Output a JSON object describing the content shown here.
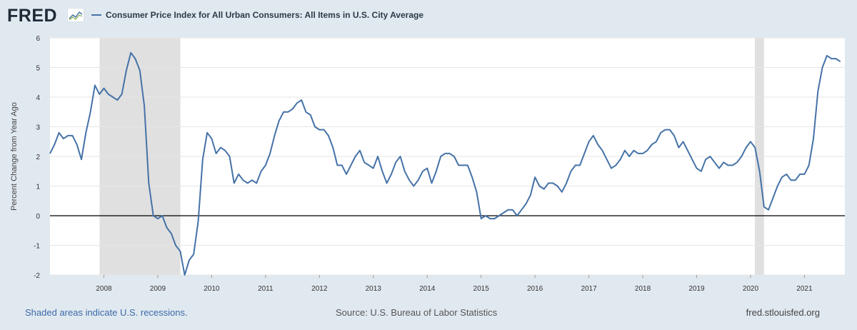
{
  "logo": {
    "text": "FRED",
    "icon": "fred-line-chart-icon"
  },
  "legend": {
    "label": "Consumer Price Index for All Urban Consumers: All Items in U.S. City Average",
    "color": "#4572a7"
  },
  "footer": {
    "recession_note": "Shaded areas indicate U.S. recessions.",
    "source": "Source: U.S. Bureau of Labor Statistics",
    "site": "fred.stlouisfed.org"
  },
  "colors": {
    "background": "#e1e9f0",
    "plot": "#ffffff",
    "grid": "#e6e6e6",
    "recession": "#e0e0e0",
    "series": "#4572a7",
    "zero_line": "#000000"
  },
  "chart_data": {
    "type": "line",
    "title": "Consumer Price Index for All Urban Consumers: All Items in U.S. City Average",
    "xlabel": "",
    "ylabel": "Percent Change from Year Ago",
    "xlim": [
      2007.0,
      2021.75
    ],
    "ylim": [
      -2,
      6
    ],
    "yticks": [
      -2,
      -1,
      0,
      1,
      2,
      3,
      4,
      5,
      6
    ],
    "xticks": [
      2008,
      2009,
      2010,
      2011,
      2012,
      2013,
      2014,
      2015,
      2016,
      2017,
      2018,
      2019,
      2020,
      2021
    ],
    "grid": true,
    "recessions": [
      [
        2007.92,
        2009.42
      ],
      [
        2020.08,
        2020.25
      ]
    ],
    "series": [
      {
        "name": "Consumer Price Index for All Urban Consumers: All Items in U.S. City Average",
        "x": [
          2007.0,
          2007.083,
          2007.167,
          2007.25,
          2007.333,
          2007.417,
          2007.5,
          2007.583,
          2007.667,
          2007.75,
          2007.833,
          2007.917,
          2008.0,
          2008.083,
          2008.167,
          2008.25,
          2008.333,
          2008.417,
          2008.5,
          2008.583,
          2008.667,
          2008.75,
          2008.833,
          2008.917,
          2009.0,
          2009.083,
          2009.167,
          2009.25,
          2009.333,
          2009.417,
          2009.5,
          2009.583,
          2009.667,
          2009.75,
          2009.833,
          2009.917,
          2010.0,
          2010.083,
          2010.167,
          2010.25,
          2010.333,
          2010.417,
          2010.5,
          2010.583,
          2010.667,
          2010.75,
          2010.833,
          2010.917,
          2011.0,
          2011.083,
          2011.167,
          2011.25,
          2011.333,
          2011.417,
          2011.5,
          2011.583,
          2011.667,
          2011.75,
          2011.833,
          2011.917,
          2012.0,
          2012.083,
          2012.167,
          2012.25,
          2012.333,
          2012.417,
          2012.5,
          2012.583,
          2012.667,
          2012.75,
          2012.833,
          2012.917,
          2013.0,
          2013.083,
          2013.167,
          2013.25,
          2013.333,
          2013.417,
          2013.5,
          2013.583,
          2013.667,
          2013.75,
          2013.833,
          2013.917,
          2014.0,
          2014.083,
          2014.167,
          2014.25,
          2014.333,
          2014.417,
          2014.5,
          2014.583,
          2014.667,
          2014.75,
          2014.833,
          2014.917,
          2015.0,
          2015.083,
          2015.167,
          2015.25,
          2015.333,
          2015.417,
          2015.5,
          2015.583,
          2015.667,
          2015.75,
          2015.833,
          2015.917,
          2016.0,
          2016.083,
          2016.167,
          2016.25,
          2016.333,
          2016.417,
          2016.5,
          2016.583,
          2016.667,
          2016.75,
          2016.833,
          2016.917,
          2017.0,
          2017.083,
          2017.167,
          2017.25,
          2017.333,
          2017.417,
          2017.5,
          2017.583,
          2017.667,
          2017.75,
          2017.833,
          2017.917,
          2018.0,
          2018.083,
          2018.167,
          2018.25,
          2018.333,
          2018.417,
          2018.5,
          2018.583,
          2018.667,
          2018.75,
          2018.833,
          2018.917,
          2019.0,
          2019.083,
          2019.167,
          2019.25,
          2019.333,
          2019.417,
          2019.5,
          2019.583,
          2019.667,
          2019.75,
          2019.833,
          2019.917,
          2020.0,
          2020.083,
          2020.167,
          2020.25,
          2020.333,
          2020.417,
          2020.5,
          2020.583,
          2020.667,
          2020.75,
          2020.833,
          2020.917,
          2021.0,
          2021.083,
          2021.167,
          2021.25,
          2021.333,
          2021.417,
          2021.5,
          2021.583,
          2021.667
        ],
        "values": [
          2.1,
          2.4,
          2.8,
          2.6,
          2.7,
          2.7,
          2.4,
          1.9,
          2.8,
          3.5,
          4.4,
          4.1,
          4.3,
          4.1,
          4.0,
          3.9,
          4.1,
          4.9,
          5.5,
          5.3,
          4.9,
          3.7,
          1.1,
          0.0,
          -0.1,
          0.0,
          -0.4,
          -0.6,
          -1.0,
          -1.2,
          -2.0,
          -1.5,
          -1.3,
          -0.2,
          1.9,
          2.8,
          2.6,
          2.1,
          2.3,
          2.2,
          2.0,
          1.1,
          1.4,
          1.2,
          1.1,
          1.2,
          1.1,
          1.5,
          1.7,
          2.1,
          2.7,
          3.2,
          3.5,
          3.5,
          3.6,
          3.8,
          3.9,
          3.5,
          3.4,
          3.0,
          2.9,
          2.9,
          2.7,
          2.3,
          1.7,
          1.7,
          1.4,
          1.7,
          2.0,
          2.2,
          1.8,
          1.7,
          1.6,
          2.0,
          1.5,
          1.1,
          1.4,
          1.8,
          2.0,
          1.5,
          1.2,
          1.0,
          1.2,
          1.5,
          1.6,
          1.1,
          1.5,
          2.0,
          2.1,
          2.1,
          2.0,
          1.7,
          1.7,
          1.7,
          1.3,
          0.8,
          -0.1,
          0.0,
          -0.1,
          -0.1,
          0.0,
          0.1,
          0.2,
          0.2,
          0.0,
          0.2,
          0.4,
          0.7,
          1.3,
          1.0,
          0.9,
          1.1,
          1.1,
          1.0,
          0.8,
          1.1,
          1.5,
          1.7,
          1.7,
          2.1,
          2.5,
          2.7,
          2.4,
          2.2,
          1.9,
          1.6,
          1.7,
          1.9,
          2.2,
          2.0,
          2.2,
          2.1,
          2.1,
          2.2,
          2.4,
          2.5,
          2.8,
          2.9,
          2.9,
          2.7,
          2.3,
          2.5,
          2.2,
          1.9,
          1.6,
          1.5,
          1.9,
          2.0,
          1.8,
          1.6,
          1.8,
          1.7,
          1.7,
          1.8,
          2.0,
          2.3,
          2.5,
          2.3,
          1.5,
          0.3,
          0.2,
          0.6,
          1.0,
          1.3,
          1.4,
          1.2,
          1.2,
          1.4,
          1.4,
          1.7,
          2.6,
          4.2,
          5.0,
          5.4,
          5.3,
          5.3,
          5.2
        ]
      }
    ]
  }
}
